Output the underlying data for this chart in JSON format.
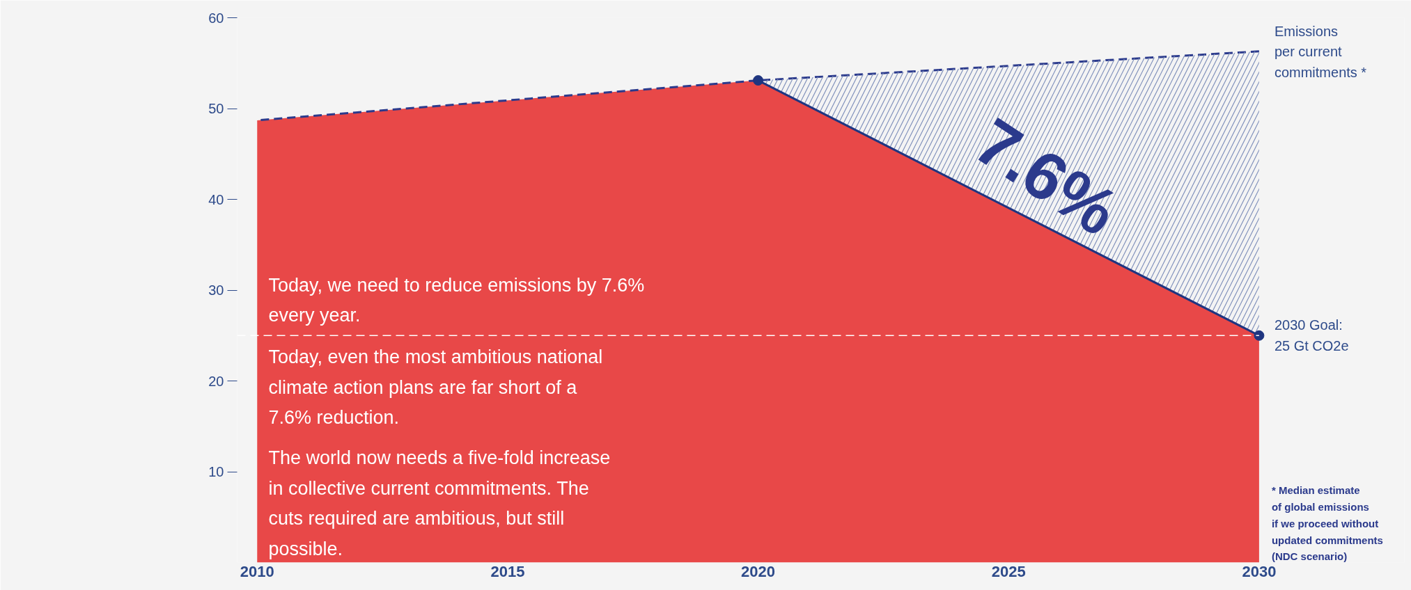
{
  "chart_data": {
    "type": "area",
    "xlim": [
      2009.6,
      2032.9
    ],
    "xticks": [
      2010,
      2015,
      2020,
      2025,
      2030
    ],
    "ylim": [
      0,
      60
    ],
    "yticks": [
      10,
      20,
      30,
      40,
      50,
      60
    ],
    "grid": false,
    "series": [
      {
        "color": "#e84848",
        "x": [
          2010,
          2020,
          2030
        ],
        "values": [
          48.7,
          53.1,
          25
        ]
      },
      {
        "type": "line",
        "name": "Emissions\nper current\ncommitments *",
        "color": "#2b3a8c",
        "line_style": "dashed",
        "x": [
          2010,
          2020,
          2030
        ],
        "values": [
          48.7,
          53.1,
          56.3
        ]
      },
      {
        "type": "line",
        "color": "#1f3580",
        "marker": "circle",
        "x": [
          2020,
          2030
        ],
        "values": [
          53.1,
          25
        ],
        "lower": [
          53.1,
          25
        ],
        "upper": [
          53.1,
          56.3
        ]
      }
    ],
    "ref_lines": [
      {
        "axis": "y",
        "value": 25,
        "label": "2030 Goal:\n25 Gt CO2e",
        "color": "#ffffff",
        "line_style": "dashed"
      }
    ],
    "annotations": [
      "7.6%",
      "Today, we need to reduce emissions by 7.6% every year.",
      "Today, even the most ambitious national climate action plans are far short of a 7.6% reduction.",
      "The world now needs a five-fold increase in collective current commitments. The cuts required are ambitious, but still possible.",
      "* Median estimate\n   of global emissions\n   if we proceed without\n   updated commitments\n   (NDC scenario)"
    ]
  }
}
